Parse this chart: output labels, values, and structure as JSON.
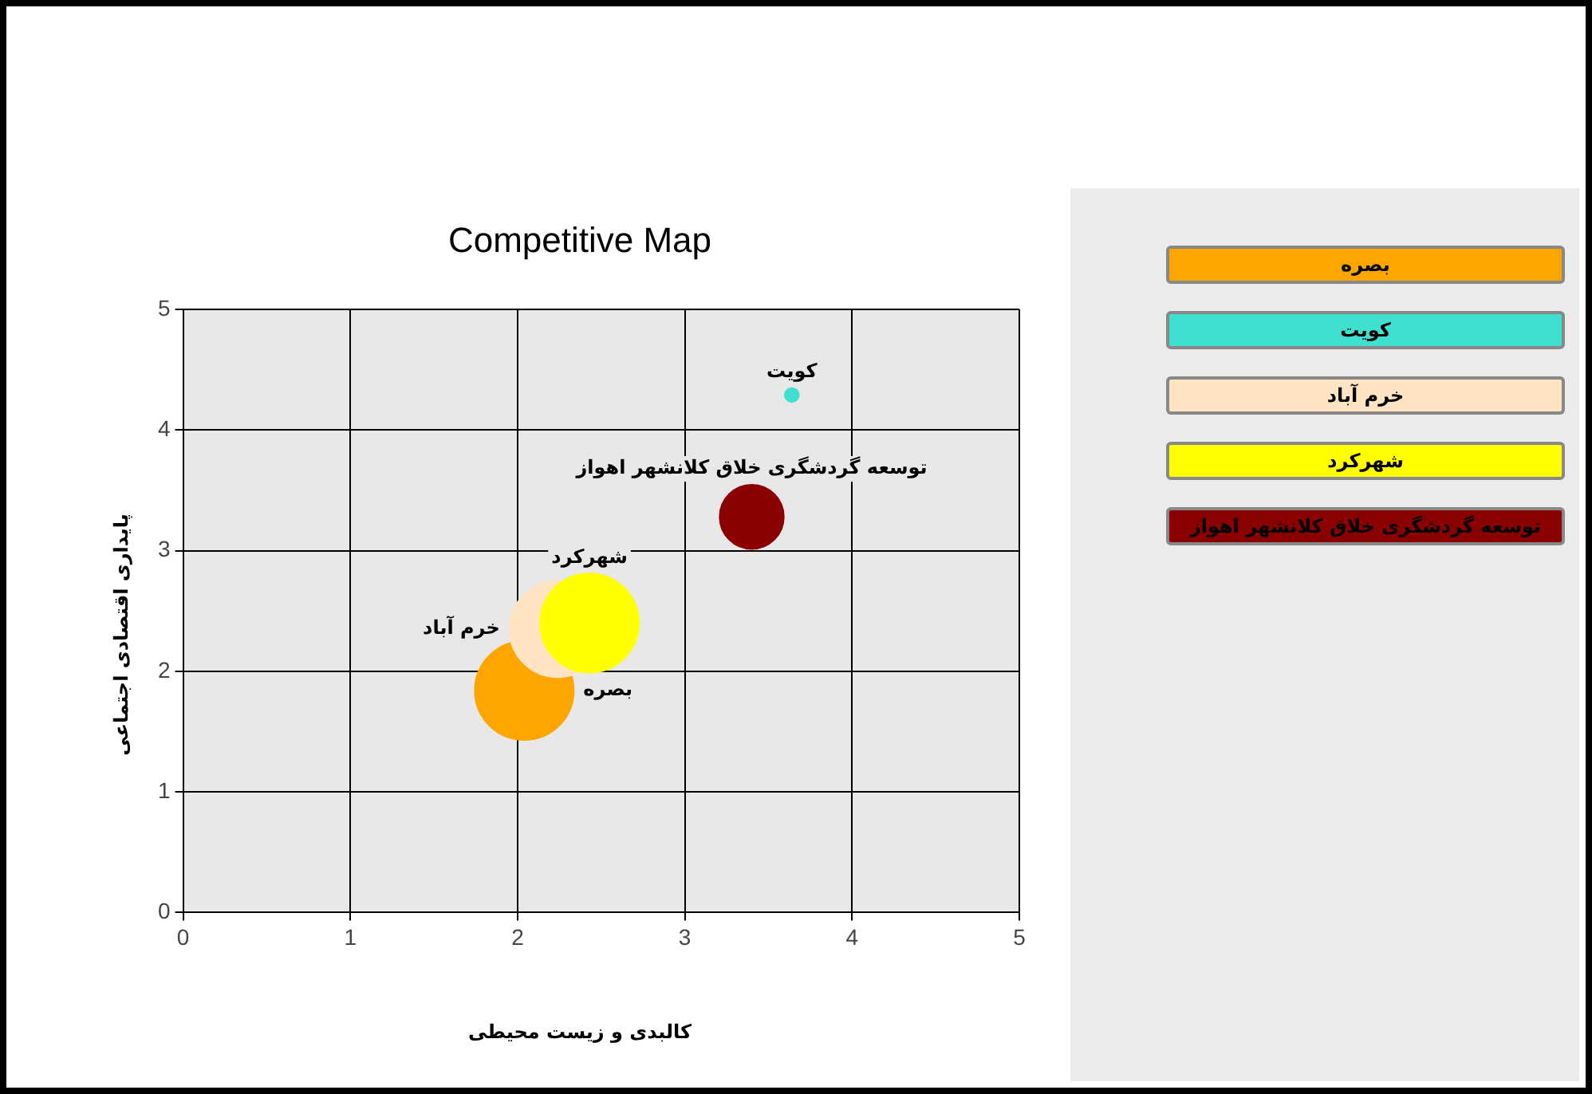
{
  "chart_data": {
    "type": "bubble",
    "title": "Competitive Map",
    "xlabel": "کالبدی و زیست محیطی",
    "ylabel": "پایداری اقتصادی اجتماعی",
    "xlim": [
      0,
      5
    ],
    "ylim": [
      0,
      5
    ],
    "xticks": [
      0,
      1,
      2,
      3,
      4,
      5
    ],
    "yticks": [
      0,
      1,
      2,
      3,
      4,
      5
    ],
    "grid": true,
    "legend": "right",
    "series": [
      {
        "name": "بصره",
        "color": "#ffa500",
        "x": [
          2.04
        ],
        "values": [
          1.84
        ],
        "sizes": [
          1
        ]
      },
      {
        "name": "کویت",
        "color": "#40e0d0",
        "x": [
          3.64
        ],
        "values": [
          4.29
        ],
        "sizes": [
          0.02
        ]
      },
      {
        "name": "خرم آباد",
        "color": "#ffe4c4",
        "x": [
          2.24
        ],
        "values": [
          2.35
        ],
        "sizes": [
          0.95
        ]
      },
      {
        "name": "شهرکرد",
        "color": "#ffff00",
        "x": [
          2.43
        ],
        "values": [
          2.4
        ],
        "sizes": [
          1
        ]
      },
      {
        "name": "توسعه گردشگری خلاق کلانشهر اهواز",
        "color": "#8b0000",
        "x": [
          3.4
        ],
        "values": [
          3.28
        ],
        "sizes": [
          0.42
        ]
      }
    ]
  }
}
